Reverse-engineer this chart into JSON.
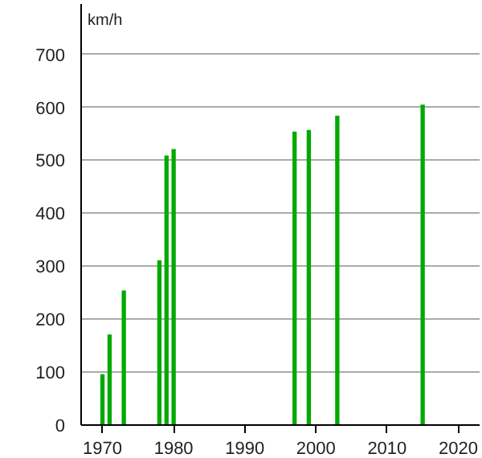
{
  "chart_data": {
    "type": "bar",
    "ylabel": "km/h",
    "x": [
      1970,
      1971,
      1973,
      1978,
      1979,
      1980,
      1997,
      1999,
      2003,
      2015
    ],
    "values": [
      96,
      171,
      254,
      311,
      509,
      521,
      554,
      557,
      584,
      605
    ],
    "color": "#00aa00",
    "xlim": [
      1967,
      2023
    ],
    "xticks": [
      1970,
      1980,
      1990,
      2000,
      2010,
      2020
    ],
    "ylim": [
      0,
      795
    ],
    "yticks": [
      0,
      100,
      200,
      300,
      400,
      500,
      600,
      700
    ],
    "grid": "y"
  }
}
